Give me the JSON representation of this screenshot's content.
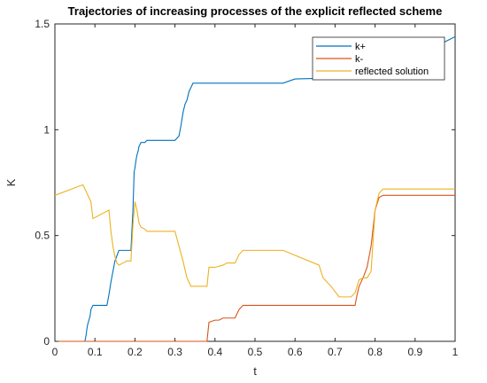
{
  "chart_data": {
    "type": "line",
    "title": "Trajectories of increasing processes of the explicit reflected scheme",
    "xlabel": "t",
    "ylabel": "K",
    "xlim": [
      0,
      1
    ],
    "ylim": [
      0,
      1.5
    ],
    "xticks": [
      "0",
      "0.1",
      "0.2",
      "0.3",
      "0.4",
      "0.5",
      "0.6",
      "0.7",
      "0.8",
      "0.9",
      "1"
    ],
    "yticks": [
      "0",
      "0.5",
      "1",
      "1.5"
    ],
    "grid": false,
    "legend_position": "top-right",
    "series": [
      {
        "name": "k+",
        "color": "#0072BD",
        "x": [
          0,
          0.075,
          0.078,
          0.08,
          0.082,
          0.085,
          0.088,
          0.09,
          0.095,
          0.13,
          0.135,
          0.14,
          0.145,
          0.15,
          0.16,
          0.19,
          0.195,
          0.198,
          0.2,
          0.203,
          0.205,
          0.208,
          0.21,
          0.215,
          0.225,
          0.23,
          0.3,
          0.31,
          0.315,
          0.32,
          0.325,
          0.33,
          0.335,
          0.34,
          0.345,
          0.35,
          0.57,
          0.6,
          0.8,
          1
        ],
        "y": [
          0,
          0,
          0.03,
          0.06,
          0.08,
          0.1,
          0.12,
          0.15,
          0.17,
          0.17,
          0.22,
          0.28,
          0.33,
          0.38,
          0.43,
          0.43,
          0.62,
          0.8,
          0.82,
          0.86,
          0.88,
          0.9,
          0.92,
          0.94,
          0.94,
          0.95,
          0.95,
          0.97,
          1.02,
          1.08,
          1.12,
          1.14,
          1.18,
          1.2,
          1.22,
          1.22,
          1.22,
          1.24,
          1.25,
          1.44
        ]
      },
      {
        "name": "k-",
        "color": "#D95319",
        "x": [
          0,
          0.38,
          0.385,
          0.4,
          0.41,
          0.42,
          0.45,
          0.46,
          0.47,
          0.75,
          0.755,
          0.76,
          0.77,
          0.78,
          0.79,
          0.8,
          0.81,
          0.82,
          1
        ],
        "y": [
          0,
          0,
          0.09,
          0.1,
          0.1,
          0.11,
          0.11,
          0.15,
          0.17,
          0.17,
          0.22,
          0.26,
          0.3,
          0.35,
          0.45,
          0.62,
          0.68,
          0.69,
          0.69
        ]
      },
      {
        "name": "reflected solution",
        "color": "#EDB120",
        "x": [
          0,
          0.07,
          0.075,
          0.09,
          0.095,
          0.135,
          0.14,
          0.145,
          0.15,
          0.155,
          0.16,
          0.17,
          0.18,
          0.19,
          0.195,
          0.2,
          0.205,
          0.21,
          0.215,
          0.225,
          0.23,
          0.3,
          0.31,
          0.32,
          0.33,
          0.34,
          0.35,
          0.38,
          0.385,
          0.4,
          0.42,
          0.43,
          0.45,
          0.46,
          0.47,
          0.57,
          0.66,
          0.67,
          0.69,
          0.71,
          0.74,
          0.75,
          0.76,
          0.77,
          0.78,
          0.79,
          0.8,
          0.81,
          0.82,
          1
        ],
        "y": [
          0.69,
          0.74,
          0.72,
          0.66,
          0.58,
          0.62,
          0.52,
          0.45,
          0.4,
          0.37,
          0.36,
          0.37,
          0.38,
          0.38,
          0.55,
          0.66,
          0.62,
          0.56,
          0.54,
          0.53,
          0.52,
          0.52,
          0.45,
          0.38,
          0.3,
          0.26,
          0.26,
          0.26,
          0.35,
          0.35,
          0.36,
          0.37,
          0.37,
          0.41,
          0.43,
          0.43,
          0.36,
          0.3,
          0.26,
          0.21,
          0.21,
          0.23,
          0.29,
          0.3,
          0.3,
          0.33,
          0.62,
          0.7,
          0.72,
          0.72
        ]
      }
    ]
  }
}
